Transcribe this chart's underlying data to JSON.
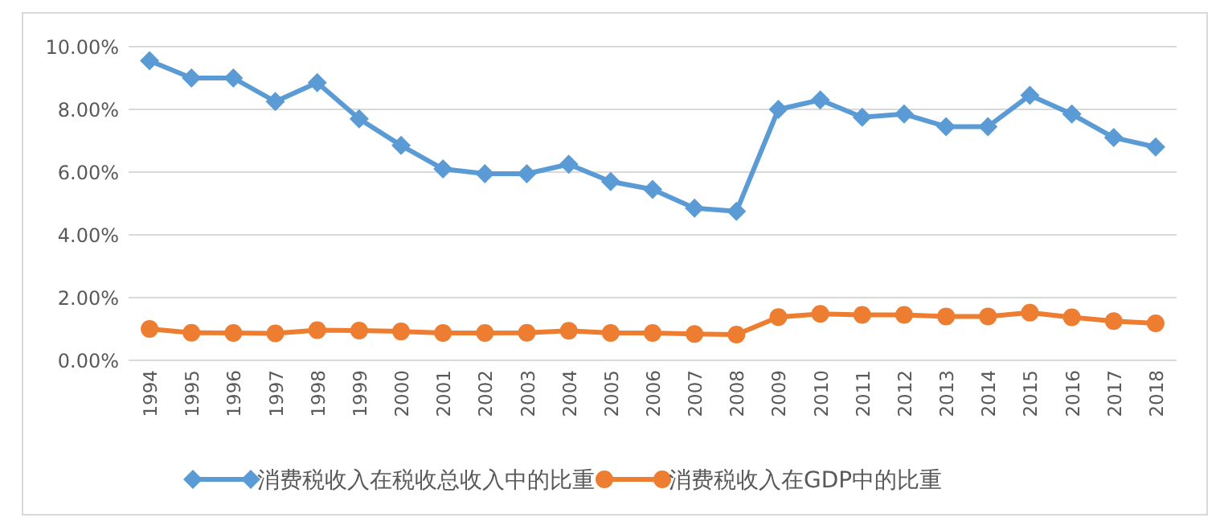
{
  "chart_data": {
    "type": "line",
    "categories": [
      "1994",
      "1995",
      "1996",
      "1997",
      "1998",
      "1999",
      "2000",
      "2001",
      "2002",
      "2003",
      "2004",
      "2005",
      "2006",
      "2007",
      "2008",
      "2009",
      "2010",
      "2011",
      "2012",
      "2013",
      "2014",
      "2015",
      "2016",
      "2017",
      "2018"
    ],
    "series": [
      {
        "name": "消费税收入在税收总收入中的比重",
        "color": "#5b9bd5",
        "marker": "diamond",
        "values": [
          9.55,
          9.0,
          9.0,
          8.25,
          8.85,
          7.7,
          6.85,
          6.1,
          5.95,
          5.95,
          6.25,
          5.7,
          5.45,
          4.85,
          4.75,
          8.0,
          8.3,
          7.75,
          7.85,
          7.45,
          7.45,
          8.45,
          7.85,
          7.1,
          6.8
        ]
      },
      {
        "name": "消费税收入在GDP中的比重",
        "color": "#ed7d31",
        "marker": "circle",
        "values": [
          1.0,
          0.88,
          0.87,
          0.86,
          0.96,
          0.95,
          0.92,
          0.87,
          0.87,
          0.88,
          0.94,
          0.87,
          0.87,
          0.84,
          0.82,
          1.38,
          1.48,
          1.45,
          1.45,
          1.4,
          1.4,
          1.52,
          1.37,
          1.25,
          1.18
        ]
      }
    ],
    "ylim": [
      0,
      10
    ],
    "yticks": [
      {
        "value": 0,
        "label": "0.00%"
      },
      {
        "value": 2,
        "label": "2.00%"
      },
      {
        "value": 4,
        "label": "4.00%"
      },
      {
        "value": 6,
        "label": "6.00%"
      },
      {
        "value": 8,
        "label": "8.00%"
      },
      {
        "value": 10,
        "label": "10.00%"
      }
    ],
    "grid": "y",
    "legend": "bottom",
    "line_style": "solid"
  }
}
